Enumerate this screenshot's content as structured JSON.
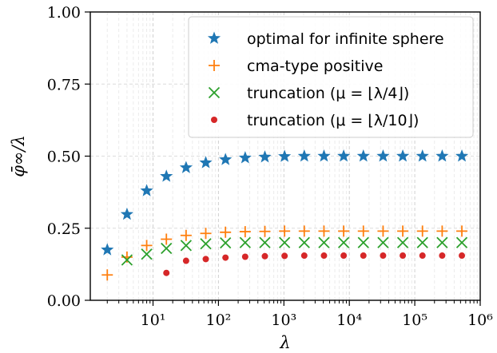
{
  "chart_data": {
    "type": "scatter",
    "xlabel": "λ",
    "ylabel": "φ̄∞/λ",
    "xscale": "log",
    "xlim": [
      1.1,
      1000000
    ],
    "ylim": [
      0.0,
      1.0
    ],
    "grid": true,
    "legend_position": "top-right",
    "xticks": [
      {
        "value": 10,
        "label": "10¹"
      },
      {
        "value": 100,
        "label": "10²"
      },
      {
        "value": 1000,
        "label": "10³"
      },
      {
        "value": 10000,
        "label": "10⁴"
      },
      {
        "value": 100000,
        "label": "10⁵"
      },
      {
        "value": 1000000,
        "label": "10⁶"
      }
    ],
    "yticks": [
      {
        "value": 0.0,
        "label": "0.00"
      },
      {
        "value": 0.25,
        "label": "0.25"
      },
      {
        "value": 0.5,
        "label": "0.50"
      },
      {
        "value": 0.75,
        "label": "0.75"
      },
      {
        "value": 1.0,
        "label": "1.00"
      }
    ],
    "series": [
      {
        "name": "optimal for infinite sphere",
        "marker": "star",
        "color": "#1f77b4",
        "x": [
          2,
          4,
          8,
          16,
          32,
          64,
          128,
          256,
          512,
          1024,
          2048,
          4096,
          8192,
          16384,
          32768,
          65536,
          131072,
          262144,
          524288
        ],
        "y": [
          0.175,
          0.298,
          0.38,
          0.43,
          0.46,
          0.477,
          0.488,
          0.494,
          0.497,
          0.499,
          0.5,
          0.5,
          0.5,
          0.5,
          0.5,
          0.5,
          0.5,
          0.5,
          0.5
        ]
      },
      {
        "name": "cma-type positive",
        "marker": "plus",
        "color": "#ff7f0e",
        "x": [
          2,
          4,
          8,
          16,
          32,
          64,
          128,
          256,
          512,
          1024,
          2048,
          4096,
          8192,
          16384,
          32768,
          65536,
          131072,
          262144,
          524288
        ],
        "y": [
          0.088,
          0.15,
          0.19,
          0.212,
          0.225,
          0.232,
          0.236,
          0.238,
          0.239,
          0.24,
          0.24,
          0.24,
          0.24,
          0.24,
          0.24,
          0.24,
          0.24,
          0.24,
          0.24
        ]
      },
      {
        "name": "truncation (μ = ⌊λ/4⌋)",
        "marker": "x",
        "color": "#2ca02c",
        "x": [
          4,
          8,
          16,
          32,
          64,
          128,
          256,
          512,
          1024,
          2048,
          4096,
          8192,
          16384,
          32768,
          65536,
          131072,
          262144,
          524288
        ],
        "y": [
          0.14,
          0.16,
          0.18,
          0.19,
          0.196,
          0.199,
          0.2,
          0.2,
          0.2,
          0.2,
          0.2,
          0.2,
          0.2,
          0.2,
          0.2,
          0.2,
          0.2,
          0.2
        ]
      },
      {
        "name": "truncation (μ = ⌊λ/10⌋)",
        "marker": "dot",
        "color": "#d62728",
        "x": [
          16,
          32,
          64,
          128,
          256,
          512,
          1024,
          2048,
          4096,
          8192,
          16384,
          32768,
          65536,
          131072,
          262144,
          524288
        ],
        "y": [
          0.095,
          0.137,
          0.143,
          0.148,
          0.151,
          0.153,
          0.154,
          0.155,
          0.155,
          0.155,
          0.155,
          0.155,
          0.155,
          0.155,
          0.155,
          0.155
        ]
      }
    ]
  }
}
